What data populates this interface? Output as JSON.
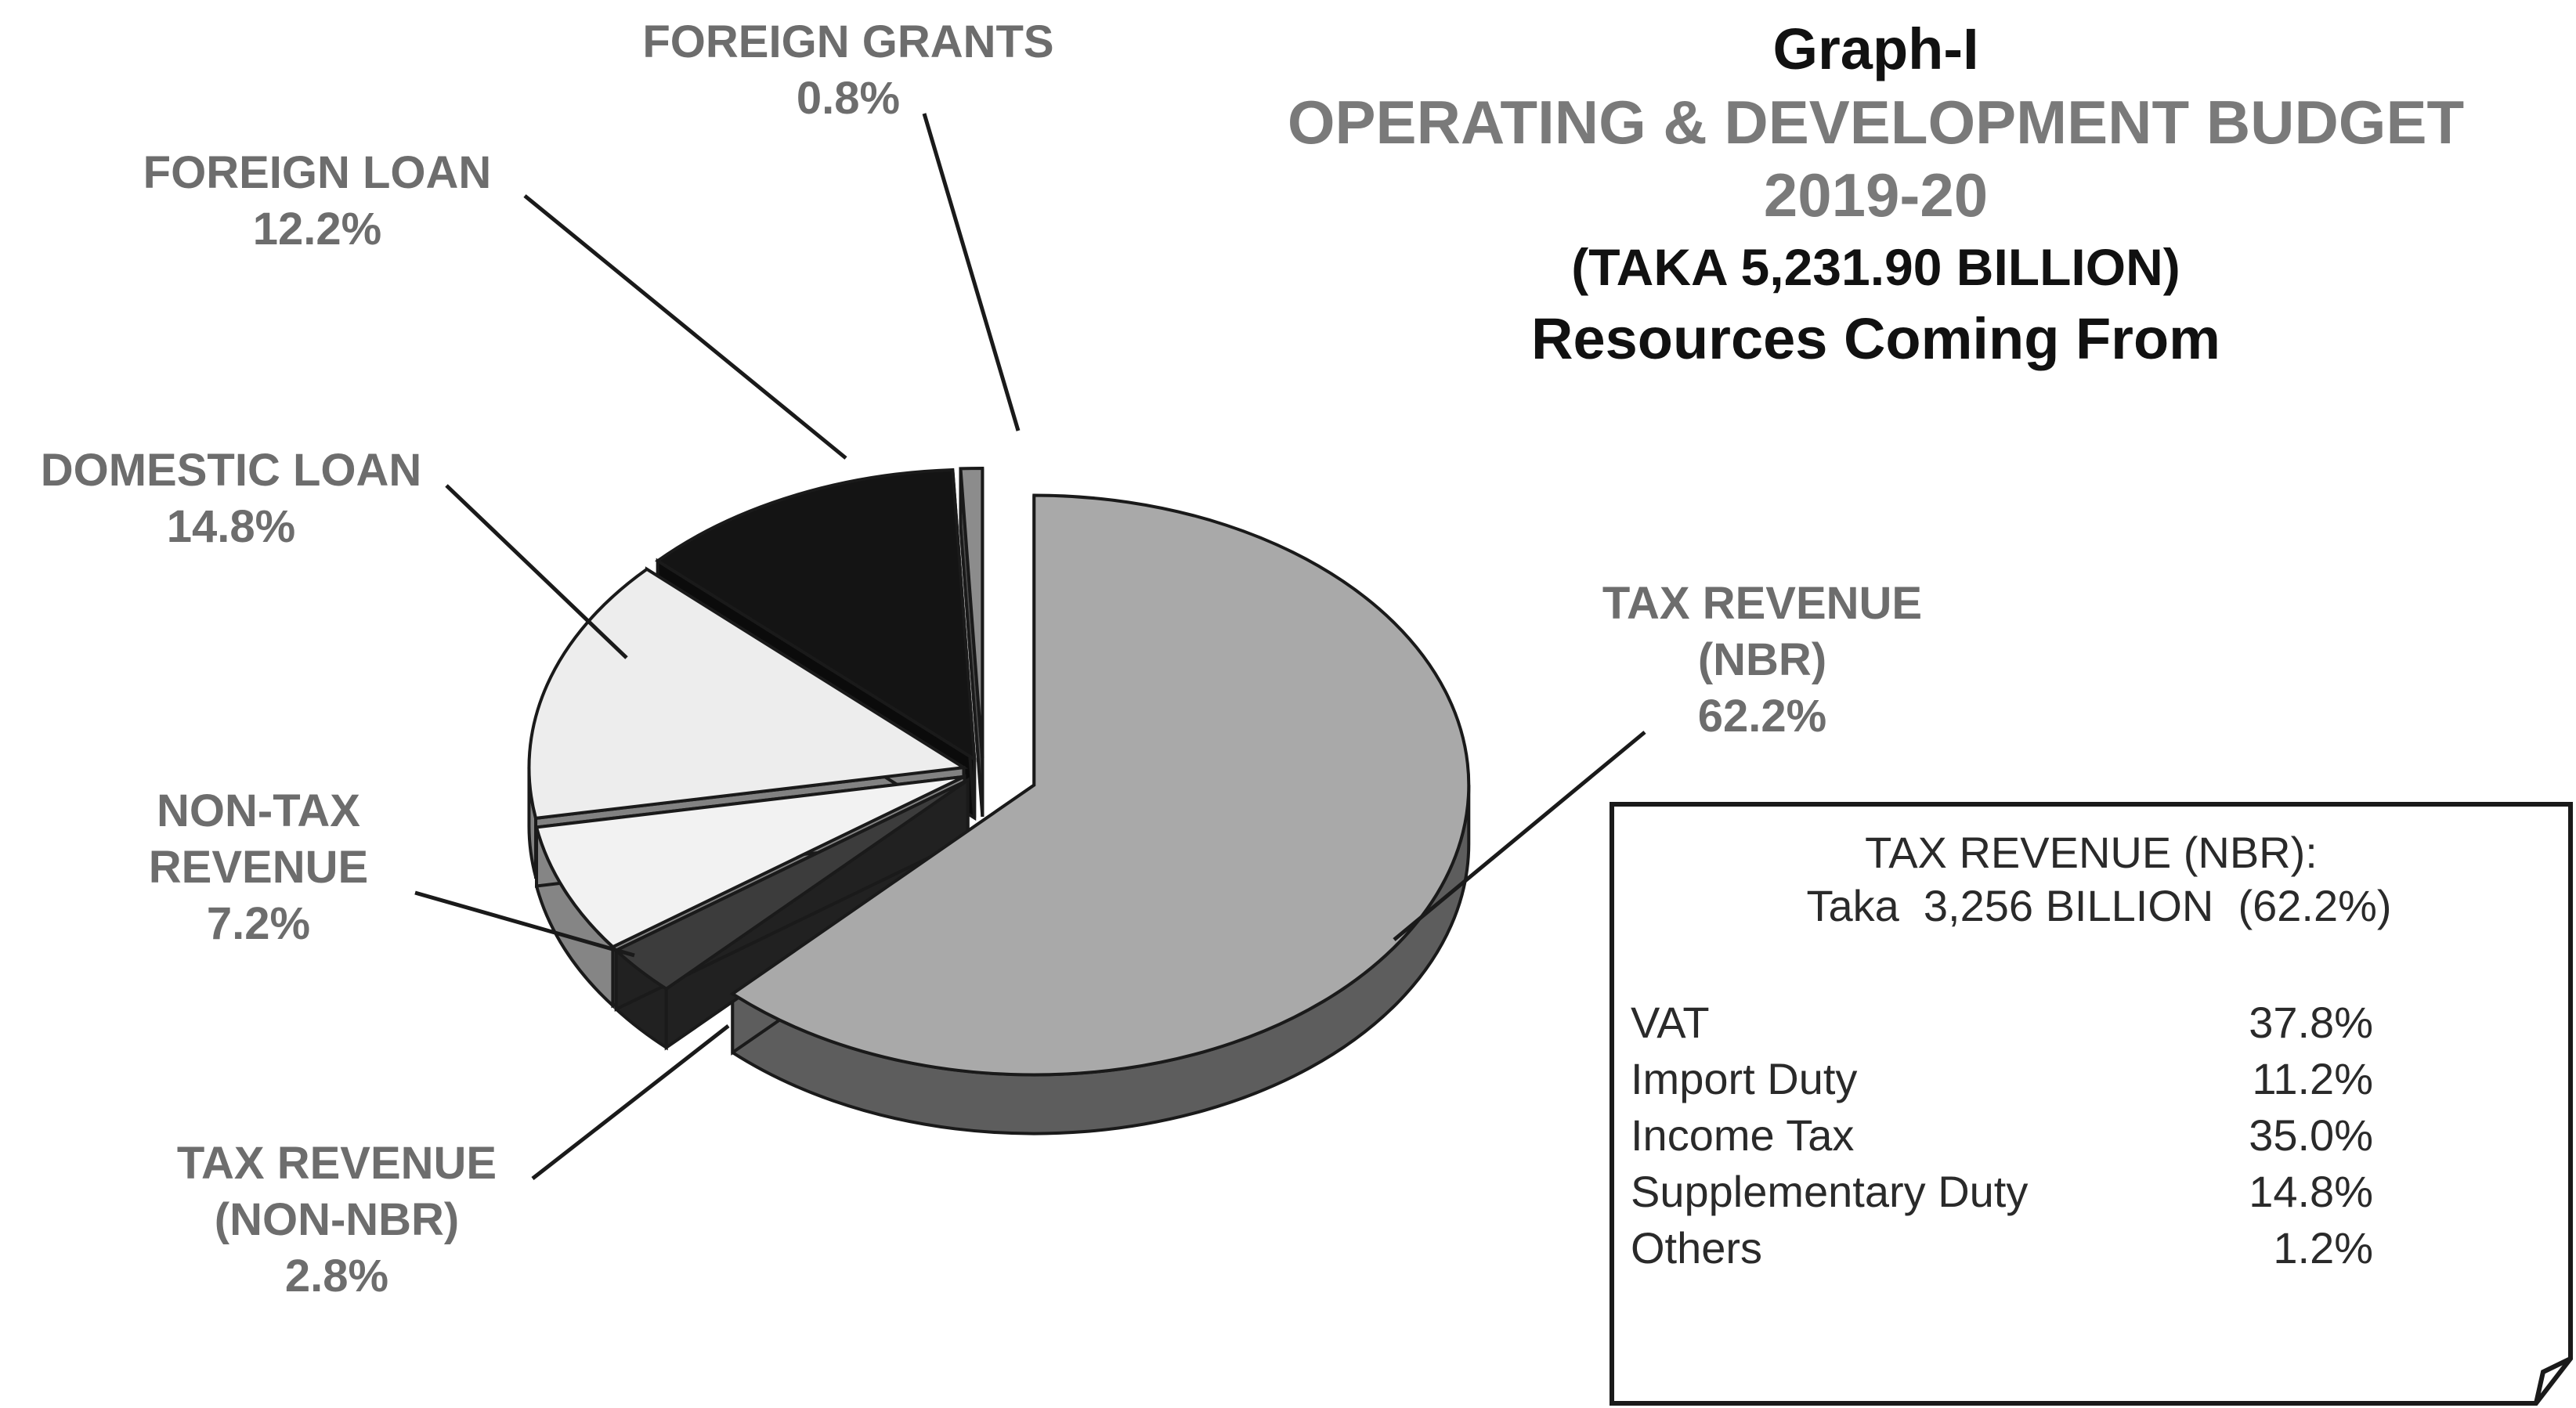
{
  "chart_data": {
    "type": "pie",
    "title": "Graph-I",
    "subtitle": [
      "OPERATING & DEVELOPMENT BUDGET",
      "2019-20",
      "(TAKA 5,231.90 BILLION)",
      "Resources Coming From"
    ],
    "slices": [
      {
        "name": "TAX REVENUE (NBR)",
        "label_lines": [
          "TAX REVENUE",
          "(NBR)"
        ],
        "value": 62.2,
        "value_label": "62.2%",
        "color": "#a9a9a9"
      },
      {
        "name": "TAX REVENUE (NON-NBR)",
        "label_lines": [
          "TAX REVENUE",
          "(NON-NBR)"
        ],
        "value": 2.8,
        "value_label": "2.8%",
        "color": "#3c3c3c"
      },
      {
        "name": "NON-TAX REVENUE",
        "label_lines": [
          "NON-TAX",
          "REVENUE"
        ],
        "value": 7.2,
        "value_label": "7.2%",
        "color": "#f2f2f2"
      },
      {
        "name": "DOMESTIC LOAN",
        "label_lines": [
          "DOMESTIC LOAN"
        ],
        "value": 14.8,
        "value_label": "14.8%",
        "color": "#ededed"
      },
      {
        "name": "FOREIGN LOAN",
        "label_lines": [
          "FOREIGN  LOAN"
        ],
        "value": 12.2,
        "value_label": "12.2%",
        "color": "#141414"
      },
      {
        "name": "FOREIGN GRANTS",
        "label_lines": [
          "FOREIGN  GRANTS"
        ],
        "value": 0.8,
        "value_label": "0.8%",
        "color": "#8c8c8c"
      }
    ],
    "legend": "none",
    "breakdown_box": {
      "heading": "TAX REVENUE (NBR):",
      "subheading": "Taka  3,256 BILLION  (62.2%)",
      "rows": [
        {
          "name": "VAT",
          "value": "37.8%"
        },
        {
          "name": "Import Duty",
          "value": "11.2%"
        },
        {
          "name": "Income Tax",
          "value": "35.0%"
        },
        {
          "name": "Supplementary Duty",
          "value": "14.8%"
        },
        {
          "name": "Others",
          "value": "1.2%"
        }
      ]
    }
  }
}
